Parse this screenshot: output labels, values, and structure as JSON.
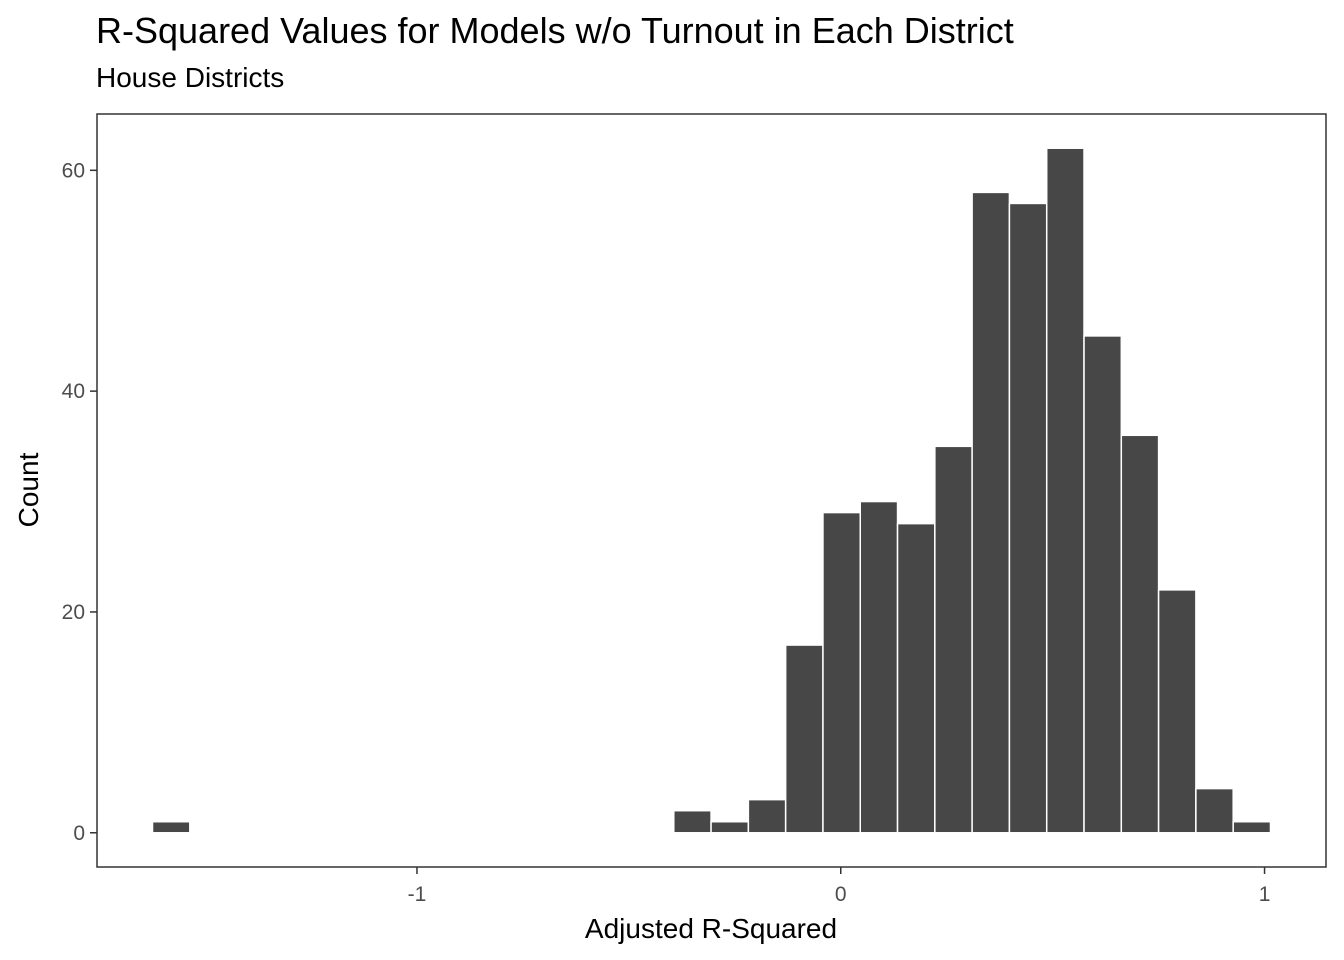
{
  "chart_data": {
    "type": "bar",
    "title": "R-Squared Values for Models w/o Turnout in Each District",
    "subtitle": "House Districts",
    "xlabel": "Adjusted R-Squared",
    "ylabel": "Count",
    "xlim": [
      -1.755,
      1.145
    ],
    "ylim": [
      -3.1,
      65.1
    ],
    "x_ticks": [
      -1,
      0,
      1
    ],
    "x_tick_labels": [
      "-1",
      "0",
      "1"
    ],
    "y_ticks": [
      0,
      20,
      40,
      60
    ],
    "y_tick_labels": [
      "0",
      "20",
      "40",
      "60"
    ],
    "bin_width": 0.088,
    "bins": [
      {
        "x": -1.58,
        "count": 1
      },
      {
        "x": -0.35,
        "count": 2
      },
      {
        "x": -0.262,
        "count": 1
      },
      {
        "x": -0.174,
        "count": 3
      },
      {
        "x": -0.086,
        "count": 17
      },
      {
        "x": 0.002,
        "count": 29
      },
      {
        "x": 0.09,
        "count": 30
      },
      {
        "x": 0.178,
        "count": 28
      },
      {
        "x": 0.266,
        "count": 35
      },
      {
        "x": 0.354,
        "count": 58
      },
      {
        "x": 0.442,
        "count": 57
      },
      {
        "x": 0.53,
        "count": 62
      },
      {
        "x": 0.618,
        "count": 45
      },
      {
        "x": 0.706,
        "count": 36
      },
      {
        "x": 0.794,
        "count": 22
      },
      {
        "x": 0.882,
        "count": 4
      },
      {
        "x": 0.97,
        "count": 1
      }
    ],
    "grid": false,
    "colors": {
      "bar_fill": "#474747",
      "bar_outline": "#ffffff",
      "panel_border": "#333333",
      "tick_label": "#4d4d4d"
    }
  }
}
